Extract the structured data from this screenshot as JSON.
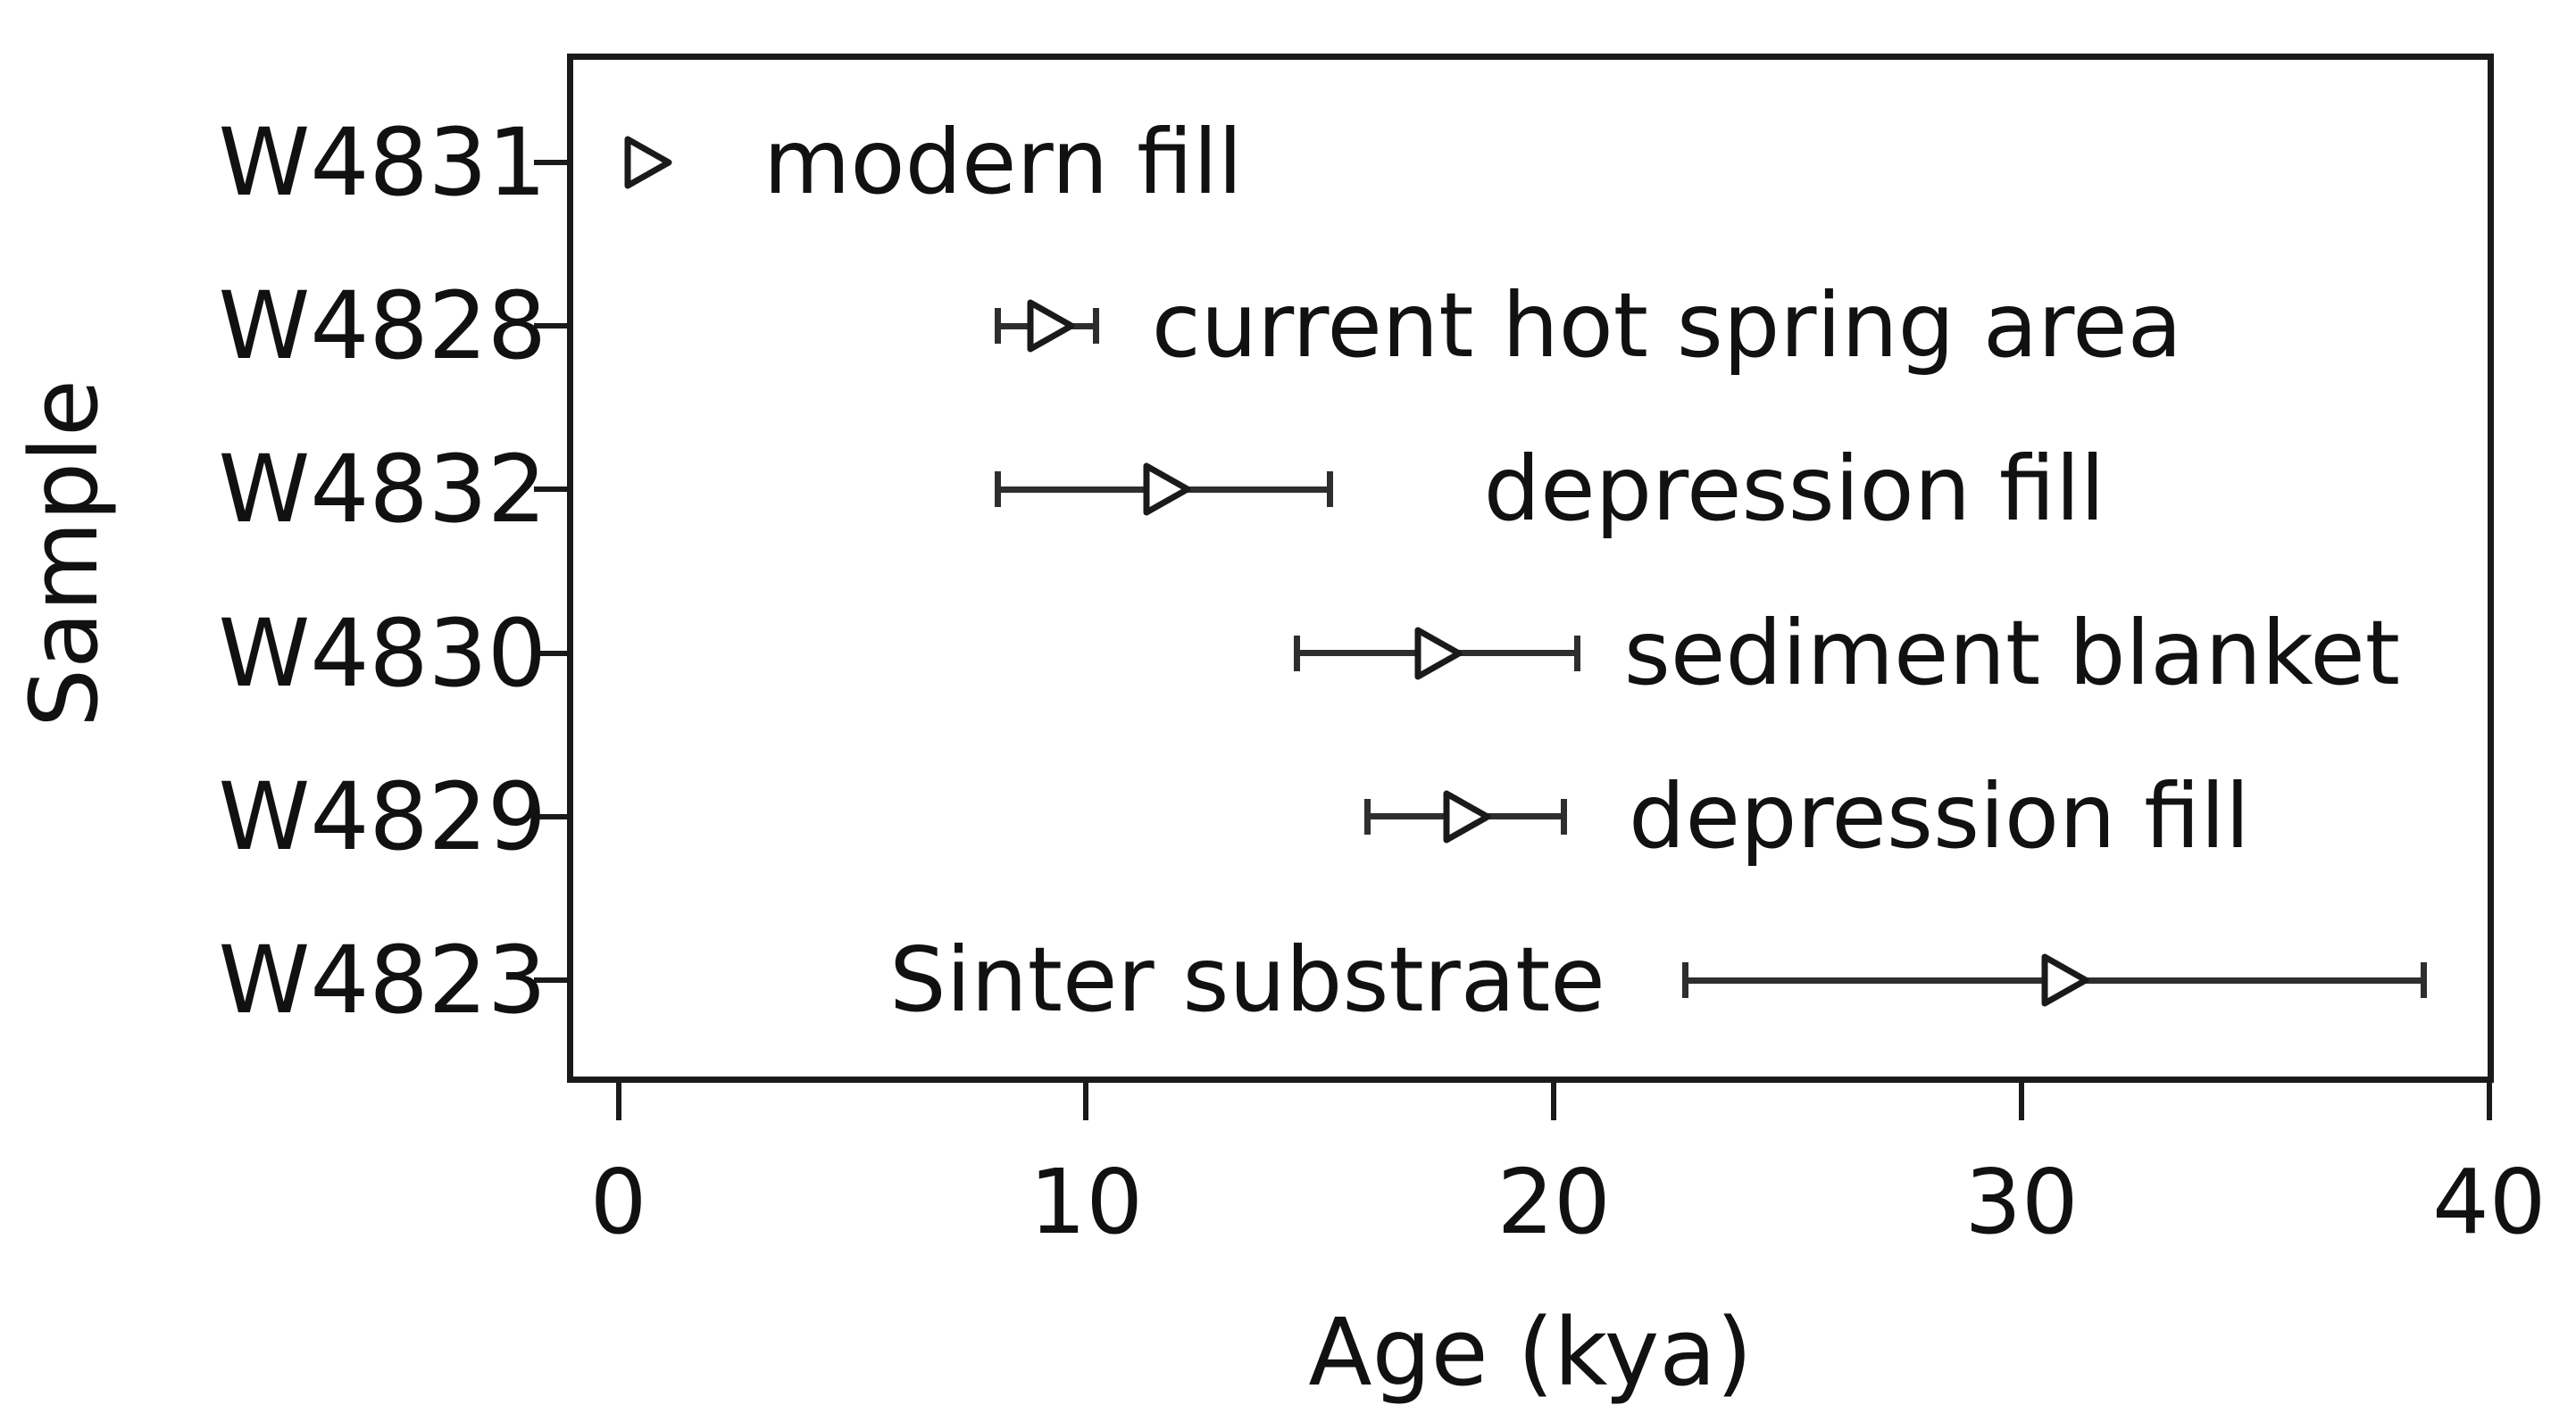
{
  "chart_data": {
    "type": "scatter",
    "title": "",
    "xlabel": "Age (kya)",
    "ylabel": "Sample",
    "xlim": [
      -1.1,
      40.1
    ],
    "xticks": [
      0,
      10,
      20,
      30,
      40
    ],
    "grid": false,
    "legend": null,
    "marker": "open-right-triangle",
    "orientation": "horizontal-error-bars",
    "categories": [
      "W4831",
      "W4828",
      "W4832",
      "W4830",
      "W4829",
      "W4823"
    ],
    "series": [
      {
        "sample": "W4831",
        "age": 0.6,
        "low": null,
        "high": null,
        "label": "modern fill",
        "label_side": "right",
        "label_x": 3.1
      },
      {
        "sample": "W4828",
        "age": 9.2,
        "low": 8.1,
        "high": 10.2,
        "label": "current hot spring area",
        "label_side": "right",
        "label_x": 11.4
      },
      {
        "sample": "W4832",
        "age": 11.7,
        "low": 8.1,
        "high": 15.2,
        "label": "depression fill",
        "label_side": "right",
        "label_x": 18.5
      },
      {
        "sample": "W4830",
        "age": 17.5,
        "low": 14.5,
        "high": 20.5,
        "label": "sediment blanket",
        "label_side": "right",
        "label_x": 21.5
      },
      {
        "sample": "W4829",
        "age": 18.1,
        "low": 16.0,
        "high": 20.2,
        "label": "depression fill",
        "label_side": "right",
        "label_x": 21.6
      },
      {
        "sample": "W4823",
        "age": 30.9,
        "low": 22.8,
        "high": 38.6,
        "label": "Sinter substrate",
        "label_side": "left",
        "label_x": 21.1
      }
    ],
    "colors": {
      "background": "#ffffff",
      "axis": "#1a1a1a",
      "error_bar": "#2e2e2e",
      "marker_stroke": "#1a1a1a",
      "marker_fill": "#ffffff",
      "text": "#111111"
    }
  }
}
